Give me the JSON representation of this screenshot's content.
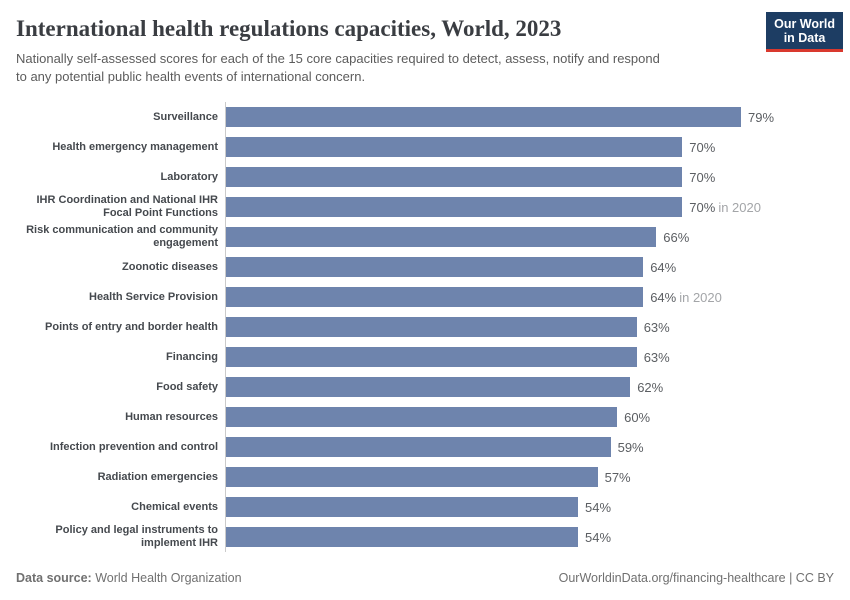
{
  "header": {
    "title": "International health regulations capacities, World, 2023",
    "subtitle": "Nationally self-assessed scores for each of the 15 core capacities required to detect, assess, notify and respond\nto any potential public health events of international concern.",
    "logo": {
      "line1": "Our World",
      "line2": "in Data"
    }
  },
  "chart_data": {
    "type": "bar",
    "orientation": "horizontal",
    "title": "International health regulations capacities, World, 2023",
    "categories": [
      "Surveillance",
      "Health emergency management",
      "Laboratory",
      "IHR Coordination and National IHR\nFocal Point Functions",
      "Risk communication and community\nengagement",
      "Zoonotic diseases",
      "Health Service Provision",
      "Points of entry and border health",
      "Financing",
      "Food safety",
      "Human resources",
      "Infection prevention and control",
      "Radiation emergencies",
      "Chemical events",
      "Policy and legal instruments to\nimplement IHR"
    ],
    "values": [
      79,
      70,
      70,
      70,
      66,
      64,
      64,
      63,
      63,
      62,
      60,
      59,
      57,
      54,
      54
    ],
    "value_suffix": "%",
    "value_notes": [
      "",
      "",
      "",
      "in 2020",
      "",
      "",
      "in 2020",
      "",
      "",
      "",
      "",
      "",
      "",
      "",
      ""
    ],
    "xlim": [
      0,
      79
    ],
    "bar_color": "#6e84ad",
    "grid": false,
    "legend": "none"
  },
  "footer": {
    "datasource_label": "Data source:",
    "datasource_value": "World Health Organization",
    "credit": "OurWorldinData.org/financing-healthcare | CC BY"
  },
  "colors": {
    "bar": "#6e84ad",
    "title": "#3a3d42",
    "subtitle": "#5c5c5c",
    "axis_line": "#cbcbcb",
    "value_note": "#a3a5a8",
    "logo_background": "#1d3d63",
    "logo_stripe": "#d9392e"
  }
}
